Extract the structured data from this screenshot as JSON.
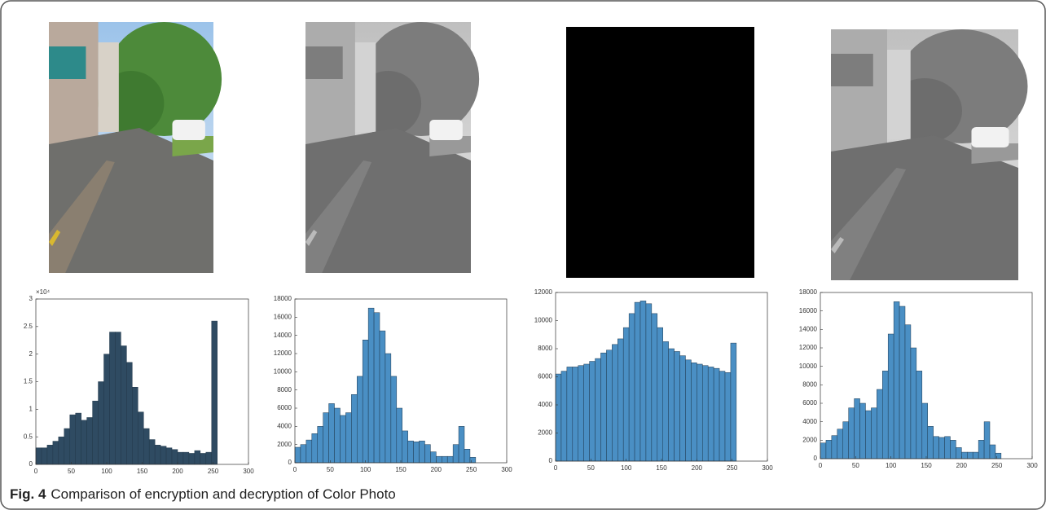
{
  "caption": {
    "label": "Fig. 4",
    "text": "Comparison of encryption and decryption of Color Photo"
  },
  "chart_data": [
    {
      "type": "histogram",
      "color": "#2f4b62",
      "edge": "#22384a",
      "y_scale_label": "×10⁴",
      "bins": [
        0,
        8,
        16,
        24,
        32,
        40,
        48,
        56,
        64,
        72,
        80,
        88,
        96,
        104,
        112,
        120,
        128,
        136,
        144,
        152,
        160,
        168,
        176,
        184,
        192,
        200,
        208,
        216,
        224,
        232,
        240,
        248,
        256
      ],
      "values": [
        3000,
        3000,
        3500,
        4200,
        5000,
        6500,
        9000,
        9300,
        8000,
        8500,
        11500,
        15000,
        20000,
        24000,
        24000,
        21500,
        18500,
        14000,
        9500,
        6500,
        4500,
        3500,
        3300,
        3000,
        2700,
        2200,
        2200,
        2000,
        2500,
        2000,
        2200,
        26000
      ],
      "xlim": [
        0,
        300
      ],
      "xticks": [
        0,
        50,
        100,
        150,
        200,
        250,
        300
      ],
      "ylim": [
        0,
        30000
      ],
      "yticks": [
        0,
        {
          "value": 5000,
          "label": "0.5"
        },
        {
          "value": 10000,
          "label": "1"
        },
        {
          "value": 15000,
          "label": "1.5"
        },
        {
          "value": 20000,
          "label": "2"
        },
        {
          "value": 25000,
          "label": "2.5"
        },
        {
          "value": 30000,
          "label": "3"
        }
      ]
    },
    {
      "type": "histogram",
      "color": "#4a8fc4",
      "edge": "#1f3a52",
      "bins": [
        0,
        8,
        16,
        24,
        32,
        40,
        48,
        56,
        64,
        72,
        80,
        88,
        96,
        104,
        112,
        120,
        128,
        136,
        144,
        152,
        160,
        168,
        176,
        184,
        192,
        200,
        208,
        216,
        224,
        232,
        240,
        248,
        256
      ],
      "values": [
        1700,
        2000,
        2500,
        3200,
        4000,
        5500,
        6500,
        6000,
        5200,
        5500,
        7500,
        9500,
        13500,
        17000,
        16500,
        14500,
        12000,
        9500,
        6000,
        3500,
        2400,
        2300,
        2400,
        2000,
        1200,
        700,
        700,
        700,
        2000,
        4000,
        1500,
        600
      ],
      "xlim": [
        0,
        300
      ],
      "xticks": [
        0,
        50,
        100,
        150,
        200,
        250,
        300
      ],
      "ylim": [
        0,
        18000
      ],
      "yticks": [
        0,
        2000,
        4000,
        6000,
        8000,
        10000,
        12000,
        14000,
        16000,
        18000
      ]
    },
    {
      "type": "histogram",
      "color": "#4a8fc4",
      "edge": "#1f3a52",
      "bins": [
        0,
        8,
        16,
        24,
        32,
        40,
        48,
        56,
        64,
        72,
        80,
        88,
        96,
        104,
        112,
        120,
        128,
        136,
        144,
        152,
        160,
        168,
        176,
        184,
        192,
        200,
        208,
        216,
        224,
        232,
        240,
        248,
        256
      ],
      "values": [
        6200,
        6400,
        6700,
        6700,
        6800,
        6900,
        7100,
        7300,
        7700,
        7900,
        8300,
        8700,
        9500,
        10500,
        11300,
        11400,
        11200,
        10500,
        9500,
        8500,
        8000,
        7800,
        7500,
        7200,
        7000,
        6900,
        6800,
        6700,
        6600,
        6400,
        6300,
        8400
      ],
      "xlim": [
        0,
        300
      ],
      "xticks": [
        0,
        50,
        100,
        150,
        200,
        250,
        300
      ],
      "ylim": [
        0,
        12000
      ],
      "yticks": [
        0,
        2000,
        4000,
        6000,
        8000,
        10000,
        12000
      ]
    },
    {
      "type": "histogram",
      "color": "#4a8fc4",
      "edge": "#1f3a52",
      "bins": [
        0,
        8,
        16,
        24,
        32,
        40,
        48,
        56,
        64,
        72,
        80,
        88,
        96,
        104,
        112,
        120,
        128,
        136,
        144,
        152,
        160,
        168,
        176,
        184,
        192,
        200,
        208,
        216,
        224,
        232,
        240,
        248,
        256
      ],
      "values": [
        1700,
        2000,
        2500,
        3200,
        4000,
        5500,
        6500,
        6000,
        5200,
        5500,
        7500,
        9500,
        13500,
        17000,
        16500,
        14500,
        12000,
        9500,
        6000,
        3500,
        2400,
        2300,
        2400,
        2000,
        1200,
        700,
        700,
        700,
        2000,
        4000,
        1500,
        600
      ],
      "xlim": [
        0,
        300
      ],
      "xticks": [
        0,
        50,
        100,
        150,
        200,
        250,
        300
      ],
      "ylim": [
        0,
        18000
      ],
      "yticks": [
        0,
        2000,
        4000,
        6000,
        8000,
        10000,
        12000,
        14000,
        16000,
        18000
      ]
    }
  ]
}
